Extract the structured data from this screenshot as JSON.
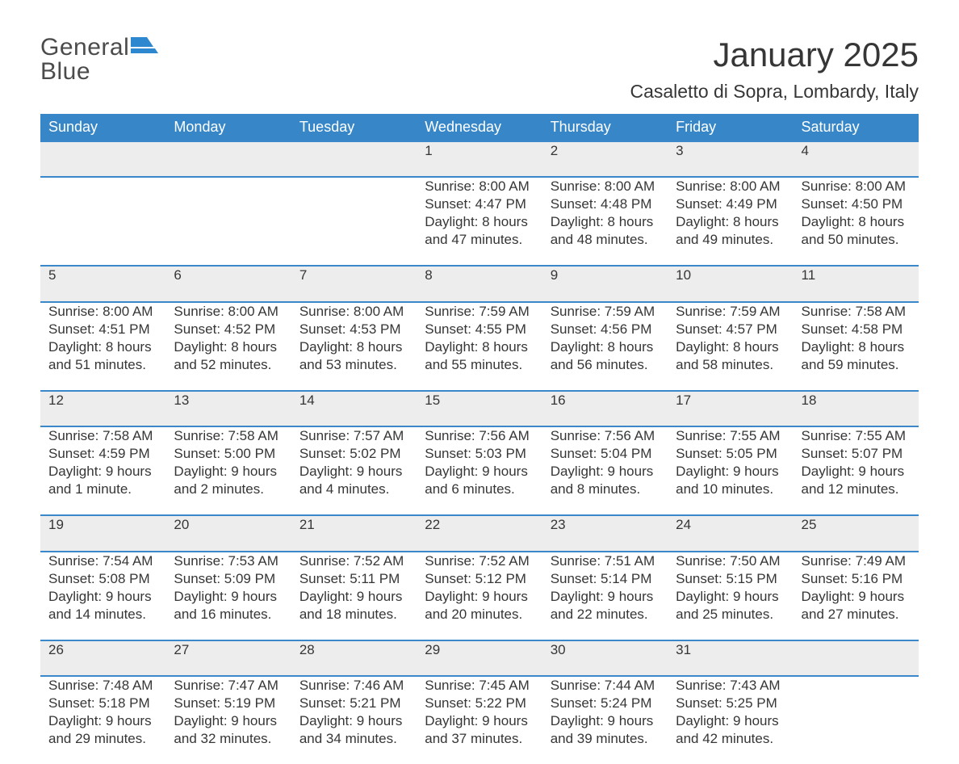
{
  "logo": {
    "word1": "General",
    "word2": "Blue"
  },
  "title": "January 2025",
  "location": "Casaletto di Sopra, Lombardy, Italy",
  "colors": {
    "header_bg": "#3787c8",
    "week_border": "#3a88c9",
    "logo_blue": "#2e88d0",
    "daynum_bg": "#ededed",
    "text": "#363636",
    "bg": "#ffffff"
  },
  "weekdays": [
    "Sunday",
    "Monday",
    "Tuesday",
    "Wednesday",
    "Thursday",
    "Friday",
    "Saturday"
  ],
  "weeks": [
    [
      null,
      null,
      null,
      {
        "n": "1",
        "sunrise": "Sunrise: 8:00 AM",
        "sunset": "Sunset: 4:47 PM",
        "daylight": "Daylight: 8 hours and 47 minutes."
      },
      {
        "n": "2",
        "sunrise": "Sunrise: 8:00 AM",
        "sunset": "Sunset: 4:48 PM",
        "daylight": "Daylight: 8 hours and 48 minutes."
      },
      {
        "n": "3",
        "sunrise": "Sunrise: 8:00 AM",
        "sunset": "Sunset: 4:49 PM",
        "daylight": "Daylight: 8 hours and 49 minutes."
      },
      {
        "n": "4",
        "sunrise": "Sunrise: 8:00 AM",
        "sunset": "Sunset: 4:50 PM",
        "daylight": "Daylight: 8 hours and 50 minutes."
      }
    ],
    [
      {
        "n": "5",
        "sunrise": "Sunrise: 8:00 AM",
        "sunset": "Sunset: 4:51 PM",
        "daylight": "Daylight: 8 hours and 51 minutes."
      },
      {
        "n": "6",
        "sunrise": "Sunrise: 8:00 AM",
        "sunset": "Sunset: 4:52 PM",
        "daylight": "Daylight: 8 hours and 52 minutes."
      },
      {
        "n": "7",
        "sunrise": "Sunrise: 8:00 AM",
        "sunset": "Sunset: 4:53 PM",
        "daylight": "Daylight: 8 hours and 53 minutes."
      },
      {
        "n": "8",
        "sunrise": "Sunrise: 7:59 AM",
        "sunset": "Sunset: 4:55 PM",
        "daylight": "Daylight: 8 hours and 55 minutes."
      },
      {
        "n": "9",
        "sunrise": "Sunrise: 7:59 AM",
        "sunset": "Sunset: 4:56 PM",
        "daylight": "Daylight: 8 hours and 56 minutes."
      },
      {
        "n": "10",
        "sunrise": "Sunrise: 7:59 AM",
        "sunset": "Sunset: 4:57 PM",
        "daylight": "Daylight: 8 hours and 58 minutes."
      },
      {
        "n": "11",
        "sunrise": "Sunrise: 7:58 AM",
        "sunset": "Sunset: 4:58 PM",
        "daylight": "Daylight: 8 hours and 59 minutes."
      }
    ],
    [
      {
        "n": "12",
        "sunrise": "Sunrise: 7:58 AM",
        "sunset": "Sunset: 4:59 PM",
        "daylight": "Daylight: 9 hours and 1 minute."
      },
      {
        "n": "13",
        "sunrise": "Sunrise: 7:58 AM",
        "sunset": "Sunset: 5:00 PM",
        "daylight": "Daylight: 9 hours and 2 minutes."
      },
      {
        "n": "14",
        "sunrise": "Sunrise: 7:57 AM",
        "sunset": "Sunset: 5:02 PM",
        "daylight": "Daylight: 9 hours and 4 minutes."
      },
      {
        "n": "15",
        "sunrise": "Sunrise: 7:56 AM",
        "sunset": "Sunset: 5:03 PM",
        "daylight": "Daylight: 9 hours and 6 minutes."
      },
      {
        "n": "16",
        "sunrise": "Sunrise: 7:56 AM",
        "sunset": "Sunset: 5:04 PM",
        "daylight": "Daylight: 9 hours and 8 minutes."
      },
      {
        "n": "17",
        "sunrise": "Sunrise: 7:55 AM",
        "sunset": "Sunset: 5:05 PM",
        "daylight": "Daylight: 9 hours and 10 minutes."
      },
      {
        "n": "18",
        "sunrise": "Sunrise: 7:55 AM",
        "sunset": "Sunset: 5:07 PM",
        "daylight": "Daylight: 9 hours and 12 minutes."
      }
    ],
    [
      {
        "n": "19",
        "sunrise": "Sunrise: 7:54 AM",
        "sunset": "Sunset: 5:08 PM",
        "daylight": "Daylight: 9 hours and 14 minutes."
      },
      {
        "n": "20",
        "sunrise": "Sunrise: 7:53 AM",
        "sunset": "Sunset: 5:09 PM",
        "daylight": "Daylight: 9 hours and 16 minutes."
      },
      {
        "n": "21",
        "sunrise": "Sunrise: 7:52 AM",
        "sunset": "Sunset: 5:11 PM",
        "daylight": "Daylight: 9 hours and 18 minutes."
      },
      {
        "n": "22",
        "sunrise": "Sunrise: 7:52 AM",
        "sunset": "Sunset: 5:12 PM",
        "daylight": "Daylight: 9 hours and 20 minutes."
      },
      {
        "n": "23",
        "sunrise": "Sunrise: 7:51 AM",
        "sunset": "Sunset: 5:14 PM",
        "daylight": "Daylight: 9 hours and 22 minutes."
      },
      {
        "n": "24",
        "sunrise": "Sunrise: 7:50 AM",
        "sunset": "Sunset: 5:15 PM",
        "daylight": "Daylight: 9 hours and 25 minutes."
      },
      {
        "n": "25",
        "sunrise": "Sunrise: 7:49 AM",
        "sunset": "Sunset: 5:16 PM",
        "daylight": "Daylight: 9 hours and 27 minutes."
      }
    ],
    [
      {
        "n": "26",
        "sunrise": "Sunrise: 7:48 AM",
        "sunset": "Sunset: 5:18 PM",
        "daylight": "Daylight: 9 hours and 29 minutes."
      },
      {
        "n": "27",
        "sunrise": "Sunrise: 7:47 AM",
        "sunset": "Sunset: 5:19 PM",
        "daylight": "Daylight: 9 hours and 32 minutes."
      },
      {
        "n": "28",
        "sunrise": "Sunrise: 7:46 AM",
        "sunset": "Sunset: 5:21 PM",
        "daylight": "Daylight: 9 hours and 34 minutes."
      },
      {
        "n": "29",
        "sunrise": "Sunrise: 7:45 AM",
        "sunset": "Sunset: 5:22 PM",
        "daylight": "Daylight: 9 hours and 37 minutes."
      },
      {
        "n": "30",
        "sunrise": "Sunrise: 7:44 AM",
        "sunset": "Sunset: 5:24 PM",
        "daylight": "Daylight: 9 hours and 39 minutes."
      },
      {
        "n": "31",
        "sunrise": "Sunrise: 7:43 AM",
        "sunset": "Sunset: 5:25 PM",
        "daylight": "Daylight: 9 hours and 42 minutes."
      },
      null
    ]
  ]
}
